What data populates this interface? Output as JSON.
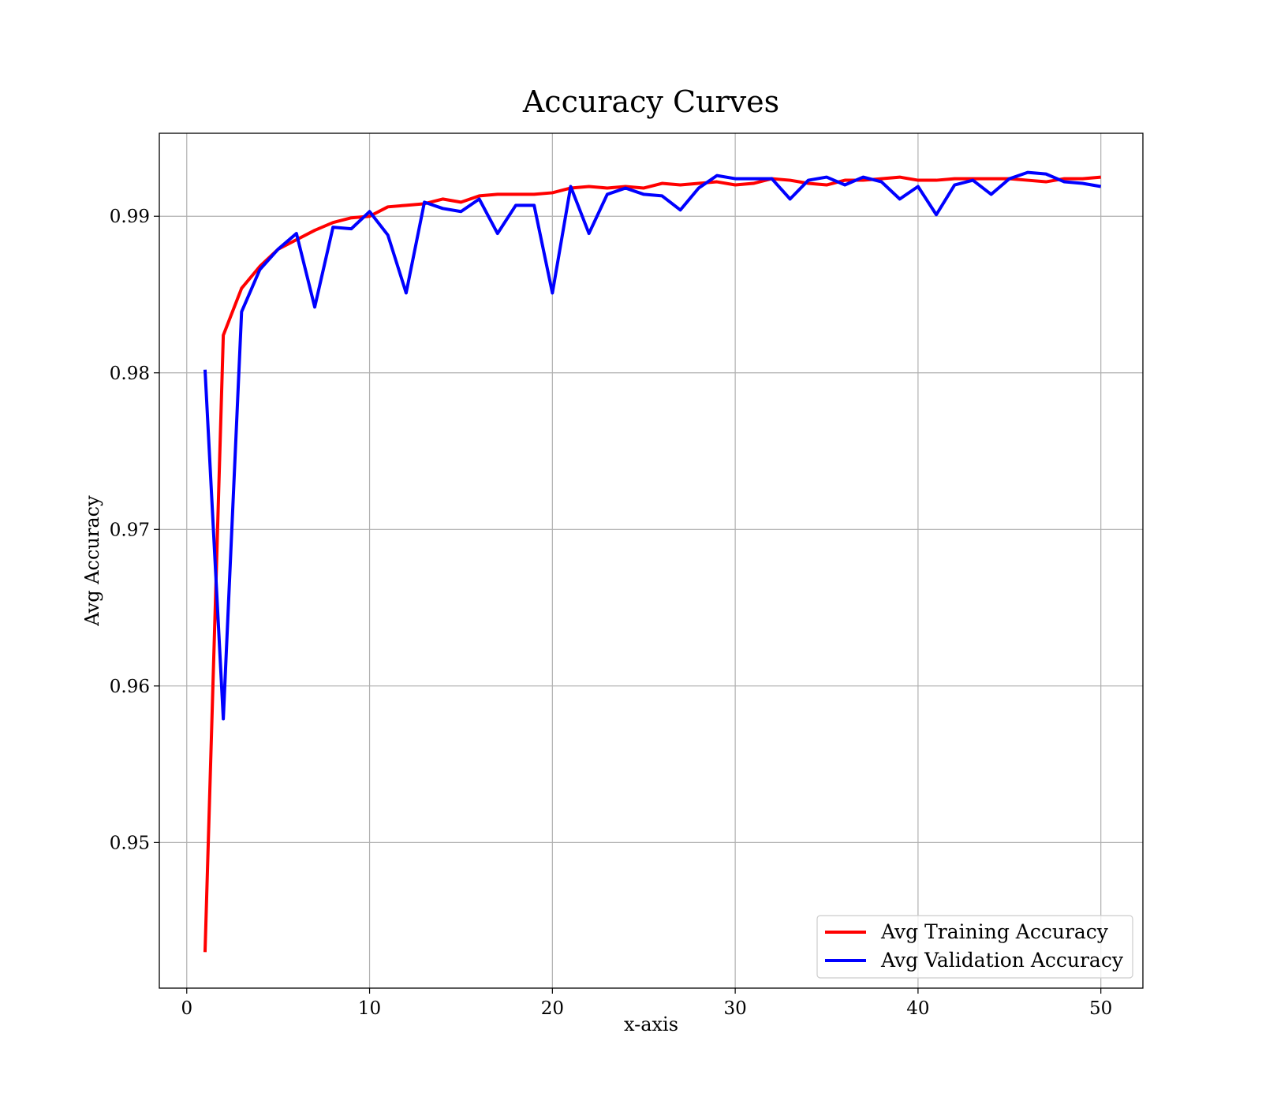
{
  "chart_data": {
    "type": "line",
    "title": "Accuracy Curves",
    "xlabel": "x-axis",
    "ylabel": "Avg Accuracy",
    "xlim": [
      -1.5,
      52.3
    ],
    "ylim": [
      0.9407,
      0.9953
    ],
    "xticks": [
      0,
      10,
      20,
      30,
      40,
      50
    ],
    "xtick_labels": [
      "0",
      "10",
      "20",
      "30",
      "40",
      "50"
    ],
    "yticks": [
      0.95,
      0.96,
      0.97,
      0.98,
      0.99
    ],
    "ytick_labels": [
      "0.95",
      "0.96",
      "0.97",
      "0.98",
      "0.99"
    ],
    "grid": true,
    "legend_position": "bottom-right",
    "x": [
      1,
      2,
      3,
      4,
      5,
      6,
      7,
      8,
      9,
      10,
      11,
      12,
      13,
      14,
      15,
      16,
      17,
      18,
      19,
      20,
      21,
      22,
      23,
      24,
      25,
      26,
      27,
      28,
      29,
      30,
      31,
      32,
      33,
      34,
      35,
      36,
      37,
      38,
      39,
      40,
      41,
      42,
      43,
      44,
      45,
      46,
      47,
      48,
      49,
      50
    ],
    "series": [
      {
        "name": "Avg Training Accuracy",
        "color": "#ff0000",
        "values": [
          0.943,
          0.9824,
          0.9854,
          0.9868,
          0.9879,
          0.9885,
          0.9891,
          0.9896,
          0.9899,
          0.99,
          0.9906,
          0.9907,
          0.9908,
          0.9911,
          0.9909,
          0.9913,
          0.9914,
          0.9914,
          0.9914,
          0.9915,
          0.9918,
          0.9919,
          0.9918,
          0.9919,
          0.9918,
          0.9921,
          0.992,
          0.9921,
          0.9922,
          0.992,
          0.9921,
          0.9924,
          0.9923,
          0.9921,
          0.992,
          0.9923,
          0.9923,
          0.9924,
          0.9925,
          0.9923,
          0.9923,
          0.9924,
          0.9924,
          0.9924,
          0.9924,
          0.9923,
          0.9922,
          0.9924,
          0.9924,
          0.9925
        ]
      },
      {
        "name": "Avg Validation Accuracy",
        "color": "#0000ff",
        "values": [
          0.9802,
          0.9579,
          0.9839,
          0.9866,
          0.9879,
          0.9889,
          0.9842,
          0.9893,
          0.9892,
          0.9903,
          0.9888,
          0.9851,
          0.9909,
          0.9905,
          0.9903,
          0.9911,
          0.9889,
          0.9907,
          0.9907,
          0.9851,
          0.9919,
          0.9889,
          0.9914,
          0.9918,
          0.9914,
          0.9913,
          0.9904,
          0.9918,
          0.9926,
          0.9924,
          0.9924,
          0.9924,
          0.9911,
          0.9923,
          0.9925,
          0.992,
          0.9925,
          0.9922,
          0.9911,
          0.9919,
          0.9901,
          0.992,
          0.9923,
          0.9914,
          0.9924,
          0.9928,
          0.9927,
          0.9922,
          0.9921,
          0.9919
        ]
      }
    ]
  }
}
